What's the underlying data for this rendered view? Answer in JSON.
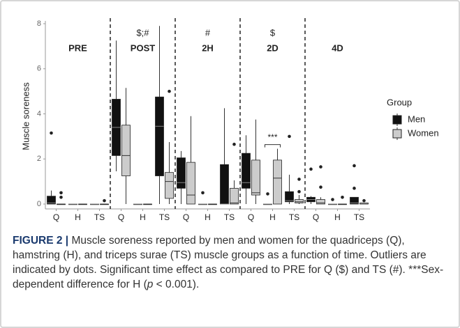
{
  "chart_data": {
    "type": "boxplot",
    "ylabel": "Muscle soreness",
    "categories": [
      "Q",
      "H",
      "TS",
      "Q",
      "H",
      "TS",
      "Q",
      "H",
      "TS",
      "Q",
      "H",
      "TS",
      "Q",
      "H",
      "TS"
    ],
    "panels": [
      "PRE",
      "POST",
      "2H",
      "2D",
      "4D"
    ],
    "panel_annotations": [
      null,
      "$;#",
      "#",
      "$",
      null
    ],
    "significance": {
      "category": 10,
      "text": "***"
    },
    "ylim": [
      0,
      8
    ],
    "yticks": [
      0,
      2,
      4,
      6,
      8
    ],
    "legend_title": "Group",
    "legend": "right",
    "series": [
      {
        "name": "Men",
        "color": "#111111",
        "boxes": [
          {
            "min": 0,
            "q1": 0,
            "median": 0.05,
            "q3": 0.35,
            "max": 0.6,
            "outliers": [
              3.15
            ]
          },
          {
            "min": 0,
            "q1": 0,
            "median": 0,
            "q3": 0,
            "max": 0,
            "outliers": []
          },
          {
            "min": 0,
            "q1": 0,
            "median": 0,
            "q3": 0,
            "max": 0,
            "outliers": []
          },
          {
            "min": 1.45,
            "q1": 2.15,
            "median": 3.4,
            "q3": 4.65,
            "max": 7.25,
            "outliers": []
          },
          {
            "min": 0,
            "q1": 0,
            "median": 0,
            "q3": 0,
            "max": 0,
            "outliers": []
          },
          {
            "min": 0,
            "q1": 1.25,
            "median": 3.45,
            "q3": 4.75,
            "max": 7.9,
            "outliers": []
          },
          {
            "min": 0,
            "q1": 0.7,
            "median": 0.95,
            "q3": 2.05,
            "max": 2.35,
            "outliers": []
          },
          {
            "min": 0,
            "q1": 0,
            "median": 0,
            "q3": 0,
            "max": 0,
            "outliers": [
              0.5
            ]
          },
          {
            "min": 0,
            "q1": 0,
            "median": 0,
            "q3": 1.75,
            "max": 4.25,
            "outliers": []
          },
          {
            "min": 0,
            "q1": 0.7,
            "median": 0.95,
            "q3": 2.25,
            "max": 3.05,
            "outliers": []
          },
          {
            "min": 0,
            "q1": 0,
            "median": 0,
            "q3": 0,
            "max": 0,
            "outliers": [
              0.45
            ]
          },
          {
            "min": 0,
            "q1": 0.1,
            "median": 0.15,
            "q3": 0.55,
            "max": 1.3,
            "outliers": [
              3.0
            ]
          },
          {
            "min": 0,
            "q1": 0.1,
            "median": 0.2,
            "q3": 0.3,
            "max": 0.35,
            "outliers": [
              1.55
            ]
          },
          {
            "min": 0,
            "q1": 0,
            "median": 0,
            "q3": 0,
            "max": 0,
            "outliers": [
              0.2
            ]
          },
          {
            "min": 0,
            "q1": 0,
            "median": 0.05,
            "q3": 0.3,
            "max": 0.3,
            "outliers": [
              0.7,
              1.7
            ]
          }
        ]
      },
      {
        "name": "Women",
        "color": "#cccccc",
        "boxes": [
          {
            "min": 0,
            "q1": 0,
            "median": 0,
            "q3": 0,
            "max": 0,
            "outliers": [
              0.3,
              0.5
            ]
          },
          {
            "min": 0,
            "q1": 0,
            "median": 0,
            "q3": 0,
            "max": 0,
            "outliers": []
          },
          {
            "min": 0,
            "q1": 0,
            "median": 0,
            "q3": 0,
            "max": 0,
            "outliers": [
              0.15
            ]
          },
          {
            "min": 0,
            "q1": 1.25,
            "median": 2.15,
            "q3": 3.5,
            "max": 5.15,
            "outliers": []
          },
          {
            "min": 0,
            "q1": 0,
            "median": 0,
            "q3": 0,
            "max": 0,
            "outliers": []
          },
          {
            "min": 0,
            "q1": 0.25,
            "median": 1.0,
            "q3": 1.4,
            "max": 2.75,
            "outliers": [
              5.0
            ]
          },
          {
            "min": 0,
            "q1": 0,
            "median": 0.4,
            "q3": 1.85,
            "max": 3.9,
            "outliers": []
          },
          {
            "min": 0,
            "q1": 0,
            "median": 0,
            "q3": 0,
            "max": 0,
            "outliers": []
          },
          {
            "min": 0,
            "q1": 0,
            "median": 0.05,
            "q3": 0.7,
            "max": 1.05,
            "outliers": [
              2.65
            ]
          },
          {
            "min": 0,
            "q1": 0.4,
            "median": 0.5,
            "q3": 1.95,
            "max": 3.75,
            "outliers": []
          },
          {
            "min": 0,
            "q1": 0,
            "median": 1.15,
            "q3": 1.95,
            "max": 2.45,
            "outliers": []
          },
          {
            "min": 0,
            "q1": 0.05,
            "median": 0.1,
            "q3": 0.2,
            "max": 0.4,
            "outliers": [
              0.55,
              1.1
            ]
          },
          {
            "min": 0,
            "q1": 0,
            "median": 0.05,
            "q3": 0.2,
            "max": 0.3,
            "outliers": [
              0.75,
              1.65
            ]
          },
          {
            "min": 0,
            "q1": 0,
            "median": 0,
            "q3": 0,
            "max": 0,
            "outliers": [
              0.3
            ]
          },
          {
            "min": 0,
            "q1": 0,
            "median": 0,
            "q3": 0.05,
            "max": 0.05,
            "outliers": [
              0.15
            ]
          }
        ]
      }
    ]
  },
  "caption": {
    "label": "FIGURE 2 |",
    "parts": [
      "Muscle soreness reported by men and women for the quadriceps (Q), hamstring (H), and triceps surae (TS) muscle groups as a function of time. Outliers are indicated by dots. Significant time effect as compared to PRE for Q ($) and TS (#). ***Sex-dependent difference for H (",
      "p",
      " < 0.001)."
    ]
  }
}
